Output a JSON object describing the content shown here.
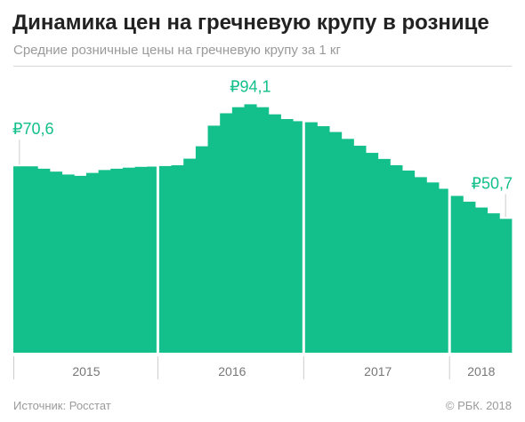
{
  "header": {
    "title": "Динамика цен на гречневую крупу в рознице",
    "subtitle": "Средние розничные цены на гречневую крупу за 1 кг"
  },
  "footer": {
    "source": "Источник: Росстат",
    "copyright": "© РБК. 2018"
  },
  "colors": {
    "bar": "#13bf8a",
    "label": "#13bf8a",
    "axis_text": "#777777",
    "tick": "#cccccc"
  },
  "chart_data": {
    "type": "bar",
    "title": "Динамика цен на гречневую крупу в рознице",
    "subtitle": "Средние розничные цены на гречневую крупу за 1 кг",
    "unit": "₽ за 1 кг",
    "ylim": [
      0,
      105
    ],
    "grid": false,
    "legend": "none",
    "groups": [
      {
        "year": "2015",
        "values": [
          70.6,
          70.6,
          69.7,
          68.6,
          67.5,
          67.0,
          68.1,
          69.2,
          69.7,
          70.1,
          70.4,
          70.5
        ]
      },
      {
        "year": "2016",
        "values": [
          70.7,
          71.0,
          73.5,
          78.2,
          86.0,
          90.7,
          93.0,
          94.1,
          93.0,
          90.3,
          88.5,
          87.7
        ]
      },
      {
        "year": "2017",
        "values": [
          87.3,
          85.8,
          83.6,
          81.0,
          78.4,
          75.7,
          73.4,
          71.0,
          69.0,
          66.5,
          64.5,
          62.1
        ]
      },
      {
        "year": "2018",
        "values": [
          59.4,
          57.2,
          55.0,
          52.8,
          50.7
        ]
      }
    ],
    "annotations": [
      {
        "text": "₽70,6",
        "value": 70.6
      },
      {
        "text": "₽94,1",
        "value": 94.1
      },
      {
        "text": "₽50,7",
        "value": 50.7
      }
    ]
  }
}
